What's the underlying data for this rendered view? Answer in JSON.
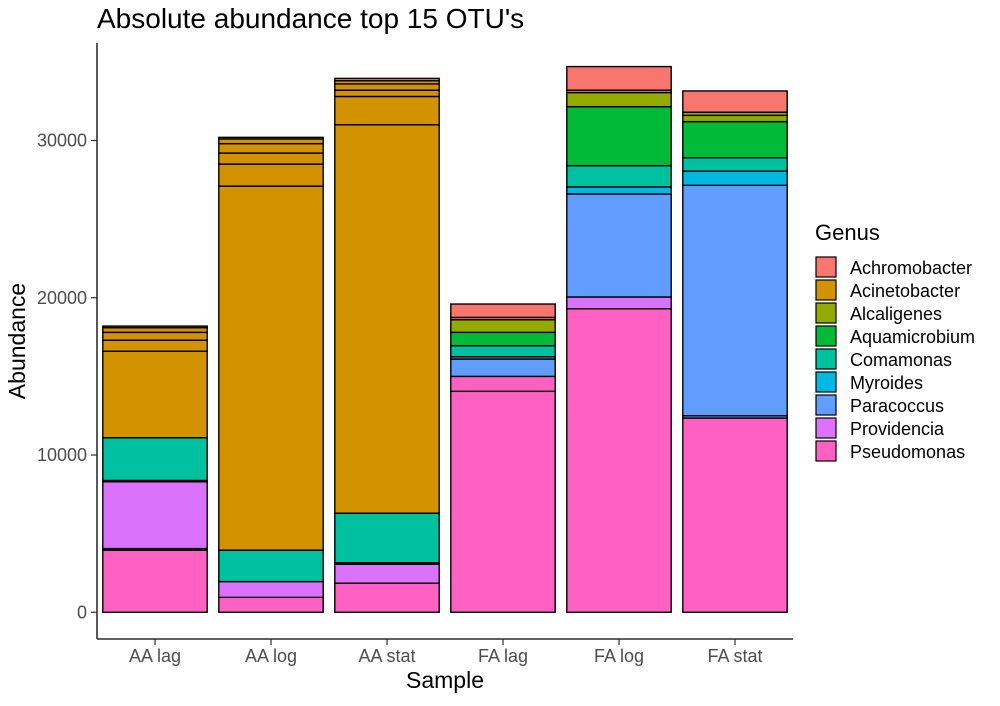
{
  "chart_data": {
    "type": "bar",
    "stacked": true,
    "title": "Absolute abundance top 15 OTU's",
    "xlabel": "Sample",
    "ylabel": "Abundance",
    "ylim": [
      -1700,
      36200
    ],
    "yticks": [
      0,
      10000,
      20000,
      30000
    ],
    "ytick_labels": [
      "0",
      "10000",
      "20000",
      "30000"
    ],
    "grid": false,
    "legend_position": "right",
    "legend_title": "Genus",
    "categories": [
      "AA lag",
      "AA log",
      "AA stat",
      "FA lag",
      "FA log",
      "FA stat"
    ],
    "genera": [
      {
        "name": "Achromobacter",
        "color": "#F8766D"
      },
      {
        "name": "Acinetobacter",
        "color": "#D39200"
      },
      {
        "name": "Alcaligenes",
        "color": "#93AA00"
      },
      {
        "name": "Aquamicrobium",
        "color": "#00BA38"
      },
      {
        "name": "Comamonas",
        "color": "#00C19F"
      },
      {
        "name": "Myroides",
        "color": "#00B9E3"
      },
      {
        "name": "Paracoccus",
        "color": "#619CFF"
      },
      {
        "name": "Providencia",
        "color": "#DB72FB"
      },
      {
        "name": "Pseudomonas",
        "color": "#FF61C3"
      }
    ],
    "stacks": [
      {
        "sample": "AA lag",
        "segments": [
          {
            "genus": "Pseudomonas",
            "value": 3950
          },
          {
            "genus": "Providencia",
            "value": 100
          },
          {
            "genus": "Providencia",
            "value": 4250
          },
          {
            "genus": "Comamonas",
            "value": 80
          },
          {
            "genus": "Comamonas",
            "value": 2720
          },
          {
            "genus": "Acinetobacter",
            "value": 5500
          },
          {
            "genus": "Acinetobacter",
            "value": 700
          },
          {
            "genus": "Acinetobacter",
            "value": 500
          },
          {
            "genus": "Acinetobacter",
            "value": 300
          },
          {
            "genus": "Achromobacter",
            "value": 100
          }
        ]
      },
      {
        "sample": "AA log",
        "segments": [
          {
            "genus": "Pseudomonas",
            "value": 950
          },
          {
            "genus": "Providencia",
            "value": 1000
          },
          {
            "genus": "Comamonas",
            "value": 2000
          },
          {
            "genus": "Acinetobacter",
            "value": 23150
          },
          {
            "genus": "Acinetobacter",
            "value": 1400
          },
          {
            "genus": "Acinetobacter",
            "value": 700
          },
          {
            "genus": "Acinetobacter",
            "value": 600
          },
          {
            "genus": "Acinetobacter",
            "value": 300
          },
          {
            "genus": "Acinetobacter",
            "value": 100
          }
        ]
      },
      {
        "sample": "AA stat",
        "segments": [
          {
            "genus": "Pseudomonas",
            "value": 1850
          },
          {
            "genus": "Providencia",
            "value": 1200
          },
          {
            "genus": "Comamonas",
            "value": 100
          },
          {
            "genus": "Comamonas",
            "value": 3150
          },
          {
            "genus": "Acinetobacter",
            "value": 24700
          },
          {
            "genus": "Acinetobacter",
            "value": 1800
          },
          {
            "genus": "Acinetobacter",
            "value": 400
          },
          {
            "genus": "Acinetobacter",
            "value": 400
          },
          {
            "genus": "Acinetobacter",
            "value": 200
          },
          {
            "genus": "Acinetobacter",
            "value": 150
          }
        ]
      },
      {
        "sample": "FA lag",
        "segments": [
          {
            "genus": "Pseudomonas",
            "value": 14050
          },
          {
            "genus": "Pseudomonas",
            "value": 950
          },
          {
            "genus": "Paracoccus",
            "value": 1100
          },
          {
            "genus": "Myroides",
            "value": 150
          },
          {
            "genus": "Comamonas",
            "value": 700
          },
          {
            "genus": "Aquamicrobium",
            "value": 850
          },
          {
            "genus": "Alcaligenes",
            "value": 800
          },
          {
            "genus": "Achromobacter",
            "value": 150
          },
          {
            "genus": "Achromobacter",
            "value": 850
          }
        ]
      },
      {
        "sample": "FA log",
        "segments": [
          {
            "genus": "Pseudomonas",
            "value": 19300
          },
          {
            "genus": "Providencia",
            "value": 750
          },
          {
            "genus": "Paracoccus",
            "value": 6550
          },
          {
            "genus": "Myroides",
            "value": 450
          },
          {
            "genus": "Comamonas",
            "value": 1350
          },
          {
            "genus": "Aquamicrobium",
            "value": 3750
          },
          {
            "genus": "Alcaligenes",
            "value": 900
          },
          {
            "genus": "Achromobacter",
            "value": 150
          },
          {
            "genus": "Achromobacter",
            "value": 1500
          }
        ]
      },
      {
        "sample": "FA stat",
        "segments": [
          {
            "genus": "Pseudomonas",
            "value": 12350
          },
          {
            "genus": "Paracoccus",
            "value": 150
          },
          {
            "genus": "Paracoccus",
            "value": 14650
          },
          {
            "genus": "Myroides",
            "value": 900
          },
          {
            "genus": "Comamonas",
            "value": 850
          },
          {
            "genus": "Aquamicrobium",
            "value": 2300
          },
          {
            "genus": "Alcaligenes",
            "value": 400
          },
          {
            "genus": "Alcaligenes",
            "value": 200
          },
          {
            "genus": "Achromobacter",
            "value": 1350
          }
        ]
      }
    ]
  }
}
